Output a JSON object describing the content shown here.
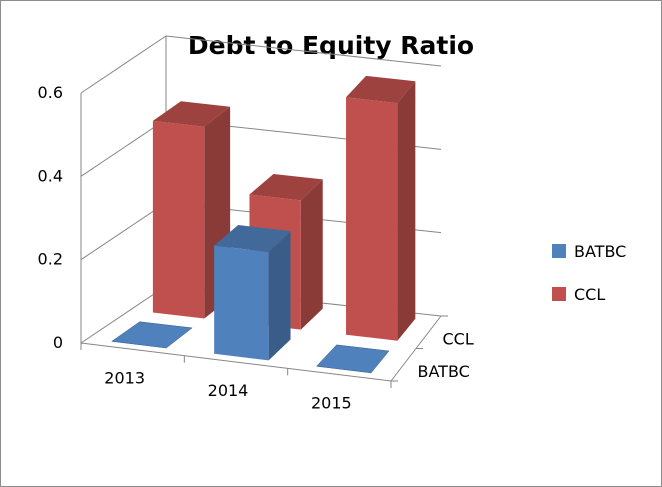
{
  "chart_data": {
    "type": "bar",
    "title": "Debt to Equity Ratio",
    "categories": [
      "2013",
      "2014",
      "2015"
    ],
    "depth_categories": [
      "CCL",
      "BATBC"
    ],
    "y_ticks": [
      "0",
      "0.2",
      "0.4",
      "0.6"
    ],
    "ylim": [
      0,
      0.6
    ],
    "grid": true,
    "legend_position": "right",
    "series": [
      {
        "name": "BATBC",
        "color": "#4f81bd",
        "values": [
          0.0,
          0.26,
          0.0
        ]
      },
      {
        "name": "CCL",
        "color": "#c0504d",
        "values": [
          0.46,
          0.31,
          0.57
        ]
      }
    ]
  }
}
